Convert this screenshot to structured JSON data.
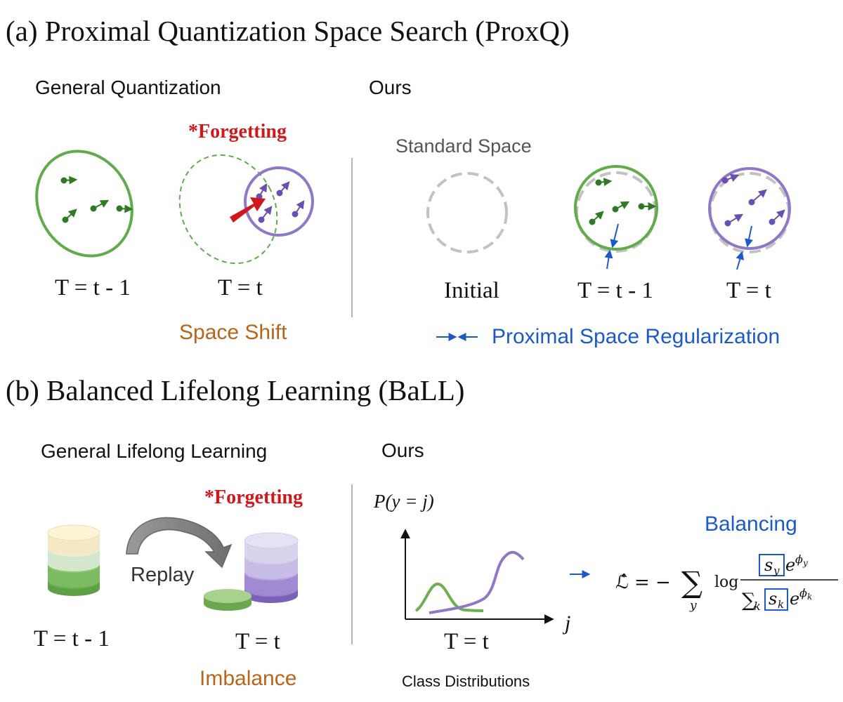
{
  "section_a": {
    "title": "(a) Proximal Quantization Space Search (ProxQ)",
    "left_heading": "General Quantization",
    "right_heading": "Ours",
    "forgetting": "*Forgetting",
    "standard_space": "Standard Space",
    "labels": {
      "t_minus_1": "T = t - 1",
      "t": "T = t",
      "initial": "Initial",
      "ours_t_minus_1": "T = t - 1",
      "ours_t": "T = t"
    },
    "space_shift": "Space Shift",
    "prox_reg": "Proximal Space Regularization"
  },
  "section_b": {
    "title": "(b) Balanced Lifelong Learning (BaLL)",
    "left_heading": "General Lifelong Learning",
    "right_heading": "Ours",
    "forgetting": "*Forgetting",
    "replay": "Replay",
    "labels": {
      "t_minus_1": "T = t - 1",
      "t": "T = t",
      "chart_t": "T = t"
    },
    "imbalance": "Imbalance",
    "y_axis": "P(y = j)",
    "x_axis": "j",
    "class_dist": "Class Distributions",
    "balancing": "Balancing",
    "formula": {
      "lhs": "ℒ̂ = −",
      "sum": "∑",
      "sum_sub": "y",
      "log": "log",
      "num_s": "s",
      "num_s_sub": "y",
      "num_e": "e",
      "num_exp": "ϕ",
      "num_exp_sub": "y",
      "den_sum": "∑",
      "den_sum_sub": "k",
      "den_s": "s",
      "den_s_sub": "k",
      "den_e": "e",
      "den_exp": "ϕ",
      "den_exp_sub": "k"
    }
  },
  "colors": {
    "green": "#5fac4a",
    "dark_green": "#2f7a23",
    "purple": "#8e78c7",
    "dark_purple": "#6a4fb3",
    "red": "#d0181b",
    "blue": "#1a5bc9",
    "orange": "#b8651a",
    "grey": "#c2c2c2"
  }
}
